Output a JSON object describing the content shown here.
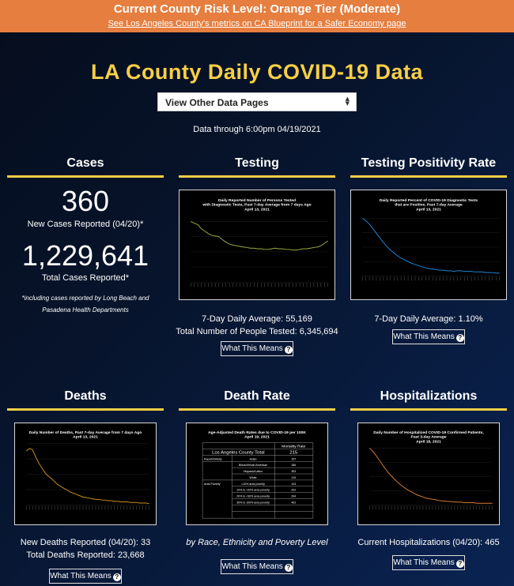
{
  "banner": {
    "title": "Current County Risk Level: Orange Tier (Moderate)",
    "link": "See Los Angeles County's metrics on CA Blueprint for a Safer Economy page",
    "color": "#e57e3f"
  },
  "title": "LA County Daily COVID-19 Data",
  "select": {
    "value": "View Other Data Pages"
  },
  "data_through": "Data through 6:00pm 04/19/2021",
  "cases": {
    "heading": "Cases",
    "new_value": "360",
    "new_label": "New Cases Reported (04/20)*",
    "total_value": "1,229,641",
    "total_label": "Total Cases Reported*",
    "note": "*including cases reported by Long Beach and Pasadena Health Departments"
  },
  "testing": {
    "heading": "Testing",
    "chart_title_1": "Daily Reported Number of Persons Tested",
    "chart_title_2": "with Diagnostic Tests, Past 7-day Average from 7 days Ago",
    "chart_title_3": "April 13, 2021",
    "avg": "7-Day Daily Average: 55,169",
    "total": "Total Number of People Tested: 6,345,694",
    "button": "What This Means"
  },
  "positivity": {
    "heading": "Testing Positivity Rate",
    "chart_title_1": "Daily Reported Percent of COVID-19 Diagnostic Tests",
    "chart_title_2": "that are Positive, Past 7-day Average",
    "chart_title_3": "April 13, 2021",
    "avg": "7-Day Daily Average: 1.10%",
    "button": "What This Means"
  },
  "deaths": {
    "heading": "Deaths",
    "chart_title_1": "Daily Number of Deaths, Past 7-day Average from 7 days Ago",
    "chart_title_2": "April 13, 2021",
    "new": "New Deaths Reported (04/20): 33",
    "total": "Total Deaths Reported: 23,668",
    "button": "What This Means"
  },
  "death_rate": {
    "heading": "Death Rate",
    "chart_title_1": "Age-Adjusted Death Rates due to COVID-19 per 100K",
    "chart_title_2": "April 19, 2021",
    "col_header": "Mortality Rate",
    "total_label": "Los Angeles County Total",
    "total_value": "215",
    "rows": [
      {
        "group": "Race/Ethnicity",
        "label": "Asian",
        "value": "157"
      },
      {
        "group": "",
        "label": "Black/African American",
        "value": "186"
      },
      {
        "group": "",
        "label": "Hispanic/Latino",
        "value": "353"
      },
      {
        "group": "",
        "label": "White",
        "value": "119"
      },
      {
        "group": "Area Poverty",
        "label": "<10% area poverty",
        "value": "123"
      },
      {
        "group": "",
        "label": "10% to <20% area poverty",
        "value": "222"
      },
      {
        "group": "",
        "label": "20% to <30% area poverty",
        "value": "294"
      },
      {
        "group": "",
        "label": "30% to 100% area poverty",
        "value": "402"
      }
    ],
    "caption": "by Race, Ethnicity and Poverty Level",
    "button": "What This Means"
  },
  "hosp": {
    "heading": "Hospitalizations",
    "chart_title_1": "Daily Number of Hospitalized COVID-19 Confirmed Patients,",
    "chart_title_2": "Past 3-day Average",
    "chart_title_3": "April 18, 2021",
    "current": "Current Hospitalizations (04/20): 465",
    "button": "What This Means"
  },
  "chart_data": [
    {
      "type": "line",
      "name": "testing",
      "color": "#9aab3a",
      "values": [
        100,
        97,
        95,
        88,
        84,
        80,
        77,
        76,
        75,
        70,
        66,
        63,
        61,
        60,
        59,
        58,
        57,
        56,
        56,
        55,
        55,
        54,
        54,
        55,
        56,
        55,
        55,
        54,
        54,
        53,
        53,
        54,
        55,
        55,
        56,
        57,
        58,
        60,
        64,
        68
      ]
    },
    {
      "type": "line",
      "name": "positivity",
      "color": "#1e86d2",
      "values": [
        100,
        96,
        90,
        82,
        74,
        66,
        58,
        51,
        45,
        40,
        35,
        31,
        28,
        25,
        22,
        20,
        18,
        16,
        14,
        13,
        12,
        11,
        10,
        10,
        9,
        9,
        8,
        9,
        9,
        8,
        8,
        8,
        7,
        7,
        7,
        6,
        6,
        6,
        5,
        5
      ]
    },
    {
      "type": "line",
      "name": "deaths",
      "color": "#c78d1d",
      "values": [
        88,
        92,
        90,
        78,
        68,
        60,
        52,
        47,
        43,
        38,
        33,
        30,
        27,
        24,
        21,
        19,
        17,
        15,
        13,
        12,
        11,
        10,
        9,
        9,
        8,
        8,
        7,
        7,
        6,
        6,
        5,
        5,
        5,
        4,
        4,
        4,
        3,
        3,
        3,
        2
      ]
    },
    {
      "type": "line",
      "name": "hospitalizations",
      "color": "#d57a2e",
      "values": [
        100,
        95,
        88,
        80,
        72,
        64,
        57,
        51,
        45,
        40,
        35,
        31,
        27,
        24,
        21,
        18,
        16,
        14,
        12,
        11,
        10,
        9,
        8,
        7,
        7,
        6,
        6,
        5,
        5,
        5,
        4,
        4,
        4,
        4,
        3,
        3,
        3,
        3,
        3,
        3
      ]
    }
  ]
}
